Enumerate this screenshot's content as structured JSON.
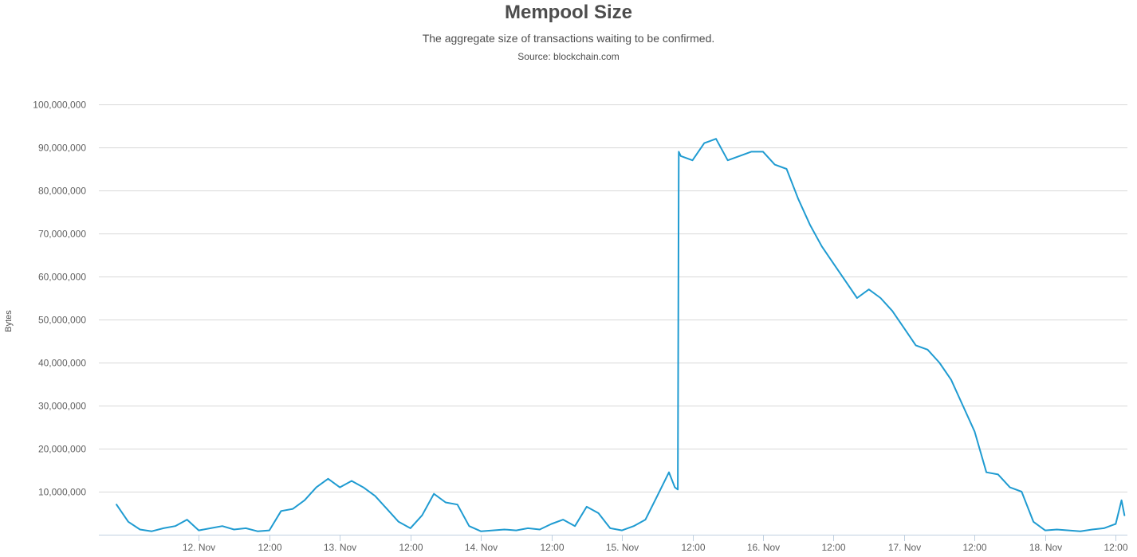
{
  "chart_data": {
    "type": "line",
    "title": "Mempool Size",
    "subtitle": "The aggregate size of transactions waiting to be confirmed.",
    "source": "Source: blockchain.com",
    "xlabel": "",
    "ylabel": "Bytes",
    "ylim": [
      0,
      100000000
    ],
    "xlim": [
      "2017-11-11T07:00",
      "2017-11-18T14:00"
    ],
    "yticks": [
      {
        "value": 10000000,
        "label": "10,000,000"
      },
      {
        "value": 20000000,
        "label": "20,000,000"
      },
      {
        "value": 30000000,
        "label": "30,000,000"
      },
      {
        "value": 40000000,
        "label": "40,000,000"
      },
      {
        "value": 50000000,
        "label": "50,000,000"
      },
      {
        "value": 60000000,
        "label": "60,000,000"
      },
      {
        "value": 70000000,
        "label": "70,000,000"
      },
      {
        "value": 80000000,
        "label": "80,000,000"
      },
      {
        "value": 90000000,
        "label": "90,000,000"
      },
      {
        "value": 100000000,
        "label": "100,000,000"
      }
    ],
    "xticks": [
      {
        "t": "2017-11-12T00:00",
        "label": "12. Nov"
      },
      {
        "t": "2017-11-12T12:00",
        "label": "12:00"
      },
      {
        "t": "2017-11-13T00:00",
        "label": "13. Nov"
      },
      {
        "t": "2017-11-13T12:00",
        "label": "12:00"
      },
      {
        "t": "2017-11-14T00:00",
        "label": "14. Nov"
      },
      {
        "t": "2017-11-14T12:00",
        "label": "12:00"
      },
      {
        "t": "2017-11-15T00:00",
        "label": "15. Nov"
      },
      {
        "t": "2017-11-15T12:00",
        "label": "12:00"
      },
      {
        "t": "2017-11-16T00:00",
        "label": "16. Nov"
      },
      {
        "t": "2017-11-16T12:00",
        "label": "12:00"
      },
      {
        "t": "2017-11-17T00:00",
        "label": "17. Nov"
      },
      {
        "t": "2017-11-17T12:00",
        "label": "12:00"
      },
      {
        "t": "2017-11-18T00:00",
        "label": "18. Nov"
      },
      {
        "t": "2017-11-18T12:00",
        "label": "12:00"
      }
    ],
    "grid": true,
    "legend": "none",
    "series": [
      {
        "color": "#1f9bd1",
        "x": [
          "2017-11-11T10:00",
          "2017-11-11T12:00",
          "2017-11-11T14:00",
          "2017-11-11T16:00",
          "2017-11-11T18:00",
          "2017-11-11T20:00",
          "2017-11-11T22:00",
          "2017-11-12T00:00",
          "2017-11-12T02:00",
          "2017-11-12T04:00",
          "2017-11-12T06:00",
          "2017-11-12T08:00",
          "2017-11-12T10:00",
          "2017-11-12T12:00",
          "2017-11-12T14:00",
          "2017-11-12T16:00",
          "2017-11-12T18:00",
          "2017-11-12T20:00",
          "2017-11-12T22:00",
          "2017-11-13T00:00",
          "2017-11-13T02:00",
          "2017-11-13T04:00",
          "2017-11-13T06:00",
          "2017-11-13T08:00",
          "2017-11-13T10:00",
          "2017-11-13T12:00",
          "2017-11-13T14:00",
          "2017-11-13T16:00",
          "2017-11-13T18:00",
          "2017-11-13T20:00",
          "2017-11-13T22:00",
          "2017-11-14T00:00",
          "2017-11-14T02:00",
          "2017-11-14T04:00",
          "2017-11-14T06:00",
          "2017-11-14T08:00",
          "2017-11-14T10:00",
          "2017-11-14T12:00",
          "2017-11-14T14:00",
          "2017-11-14T16:00",
          "2017-11-14T18:00",
          "2017-11-14T20:00",
          "2017-11-14T22:00",
          "2017-11-15T00:00",
          "2017-11-15T02:00",
          "2017-11-15T04:00",
          "2017-11-15T06:00",
          "2017-11-15T08:00",
          "2017-11-15T09:00",
          "2017-11-15T09:30",
          "2017-11-15T09:40",
          "2017-11-15T10:00",
          "2017-11-15T12:00",
          "2017-11-15T14:00",
          "2017-11-15T16:00",
          "2017-11-15T18:00",
          "2017-11-15T20:00",
          "2017-11-15T22:00",
          "2017-11-16T00:00",
          "2017-11-16T02:00",
          "2017-11-16T04:00",
          "2017-11-16T06:00",
          "2017-11-16T08:00",
          "2017-11-16T10:00",
          "2017-11-16T12:00",
          "2017-11-16T14:00",
          "2017-11-16T16:00",
          "2017-11-16T18:00",
          "2017-11-16T20:00",
          "2017-11-16T22:00",
          "2017-11-17T00:00",
          "2017-11-17T02:00",
          "2017-11-17T04:00",
          "2017-11-17T06:00",
          "2017-11-17T08:00",
          "2017-11-17T10:00",
          "2017-11-17T12:00",
          "2017-11-17T14:00",
          "2017-11-17T16:00",
          "2017-11-17T18:00",
          "2017-11-17T20:00",
          "2017-11-17T22:00",
          "2017-11-18T00:00",
          "2017-11-18T02:00",
          "2017-11-18T04:00",
          "2017-11-18T06:00",
          "2017-11-18T08:00",
          "2017-11-18T10:00",
          "2017-11-18T12:00",
          "2017-11-18T13:00",
          "2017-11-18T13:30"
        ],
        "y": [
          7000000,
          3000000,
          1200000,
          800000,
          1500000,
          2000000,
          3500000,
          1000000,
          1500000,
          2000000,
          1200000,
          1500000,
          800000,
          1000000,
          5500000,
          6000000,
          8000000,
          11000000,
          13000000,
          11000000,
          12500000,
          11000000,
          9000000,
          6000000,
          3000000,
          1500000,
          4500000,
          9500000,
          7500000,
          7000000,
          2000000,
          800000,
          1000000,
          1200000,
          1000000,
          1500000,
          1200000,
          2500000,
          3500000,
          2000000,
          6500000,
          5000000,
          1500000,
          1000000,
          2000000,
          3500000,
          9000000,
          14500000,
          11000000,
          10500000,
          89000000,
          88000000,
          87000000,
          91000000,
          92000000,
          87000000,
          88000000,
          89000000,
          89000000,
          86000000,
          85000000,
          78000000,
          72000000,
          67000000,
          63000000,
          59000000,
          55000000,
          57000000,
          55000000,
          52000000,
          48000000,
          44000000,
          43000000,
          40000000,
          36000000,
          30000000,
          24000000,
          14500000,
          14000000,
          11000000,
          10000000,
          3000000,
          1000000,
          1200000,
          1000000,
          800000,
          1200000,
          1500000,
          2500000,
          8000000,
          4500000
        ]
      }
    ]
  }
}
